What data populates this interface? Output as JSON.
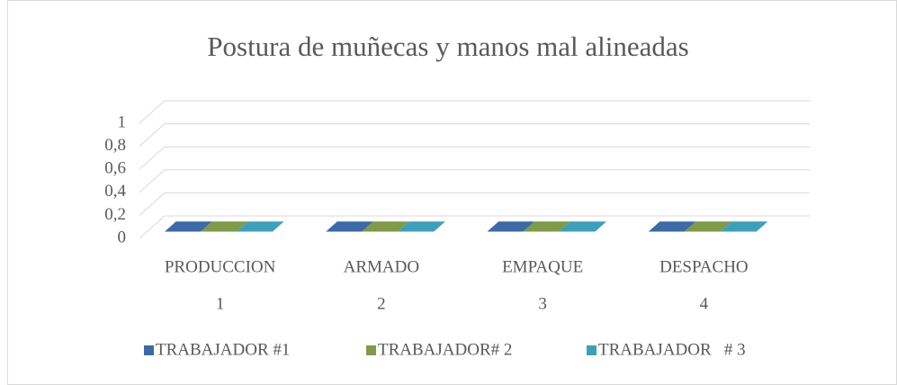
{
  "chart_data": {
    "type": "bar3d",
    "title": "Postura de muñecas y manos mal alineadas",
    "categories": [
      "PRODUCCION",
      "ARMADO",
      "EMPAQUE",
      "DESPACHO"
    ],
    "category_groups": [
      "1",
      "2",
      "3",
      "4"
    ],
    "series": [
      {
        "name": "TRABAJADOR #1",
        "color": "#3d6aa6",
        "values": [
          0,
          0,
          0,
          0
        ]
      },
      {
        "name": "TRABAJADOR# 2",
        "color": "#7f9a48",
        "values": [
          0,
          0,
          0,
          0
        ]
      },
      {
        "name": "TRABAJADOR   # 3",
        "color": "#3ea0b8",
        "values": [
          0,
          0,
          0,
          0
        ]
      }
    ],
    "ylim": [
      0,
      1
    ],
    "yticks": [
      0,
      {
        "value": 0.2,
        "label": "0,2"
      },
      {
        "value": 0.4,
        "label": "0,4"
      },
      {
        "value": 0.6,
        "label": "0,6"
      },
      {
        "value": 0.8,
        "label": "0,8"
      },
      1
    ],
    "grid": true,
    "legend": "bottom"
  }
}
